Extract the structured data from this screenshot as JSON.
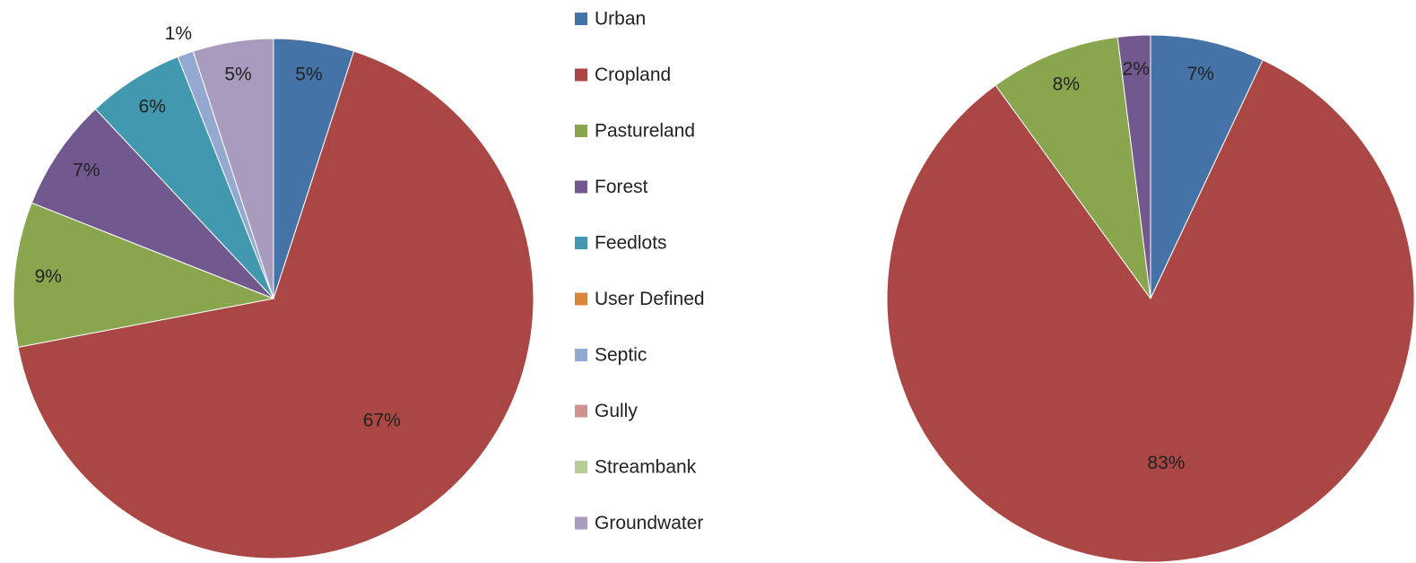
{
  "chart_data": [
    {
      "type": "pie",
      "categories": [
        "Urban",
        "Cropland",
        "Pastureland",
        "Forest",
        "Feedlots",
        "User Defined",
        "Septic",
        "Gully",
        "Streambank",
        "Groundwater"
      ],
      "colors": [
        "#4572a7",
        "#aa4643",
        "#89a54e",
        "#71588f",
        "#4198af",
        "#db843d",
        "#93a9cf",
        "#d19392",
        "#b9cd96",
        "#a99bbd"
      ],
      "values": [
        5,
        67,
        9,
        7,
        6,
        0,
        1,
        0,
        0,
        5
      ],
      "value_labels": [
        "5%",
        "67%",
        "9%",
        "7%",
        "6%",
        null,
        "1%",
        null,
        null,
        "5%"
      ]
    },
    {
      "type": "pie",
      "values": [
        7,
        83,
        8,
        2,
        0,
        0,
        0,
        0,
        0,
        0
      ],
      "value_labels": [
        "7%",
        "83%",
        "8%",
        "2%",
        null,
        null,
        null,
        null,
        null,
        null
      ]
    }
  ]
}
